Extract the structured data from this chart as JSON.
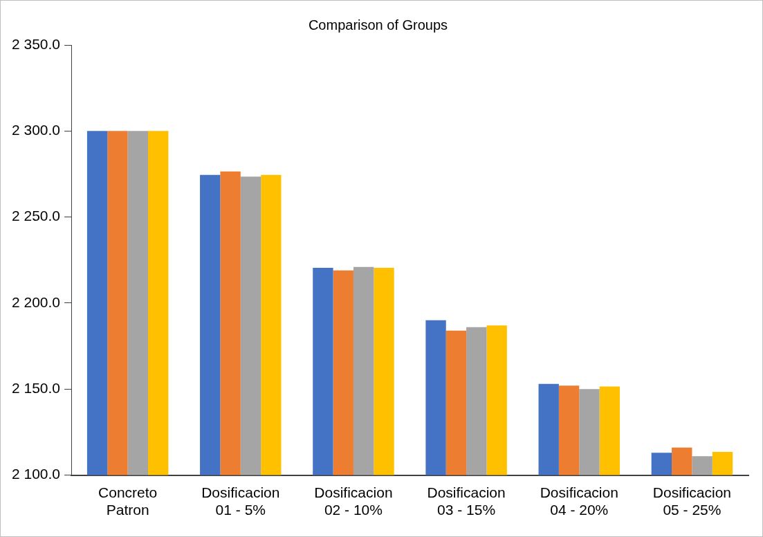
{
  "chart_data": {
    "type": "bar",
    "title": "Comparison of Groups",
    "categories": [
      "Concreto Patron",
      "Dosificacion 01 - 5%",
      "Dosificacion 02 - 10%",
      "Dosificacion 03 - 15%",
      "Dosificacion 04 - 20%",
      "Dosificacion 05 - 25%"
    ],
    "series": [
      {
        "color": "#4472c4",
        "values": [
          2300,
          2274.5,
          2220.5,
          2190,
          2153,
          2113
        ]
      },
      {
        "color": "#ed7d31",
        "values": [
          2300,
          2276.5,
          2219,
          2184,
          2152,
          2116
        ]
      },
      {
        "color": "#a5a5a5",
        "values": [
          2300,
          2273.5,
          2221,
          2186,
          2150,
          2111
        ]
      },
      {
        "color": "#ffc000",
        "values": [
          2300,
          2274.5,
          2220.5,
          2187,
          2151.5,
          2113.5
        ]
      }
    ],
    "ylim": [
      2100,
      2350
    ],
    "yticks": [
      {
        "value": 2100,
        "label": "2 100.0"
      },
      {
        "value": 2150,
        "label": "2 150.0"
      },
      {
        "value": 2200,
        "label": "2 200.0"
      },
      {
        "value": 2250,
        "label": "2 250.0"
      },
      {
        "value": 2300,
        "label": "2 300.0"
      },
      {
        "value": 2350,
        "label": "2 350.0"
      }
    ],
    "grid": false,
    "legend": false
  }
}
